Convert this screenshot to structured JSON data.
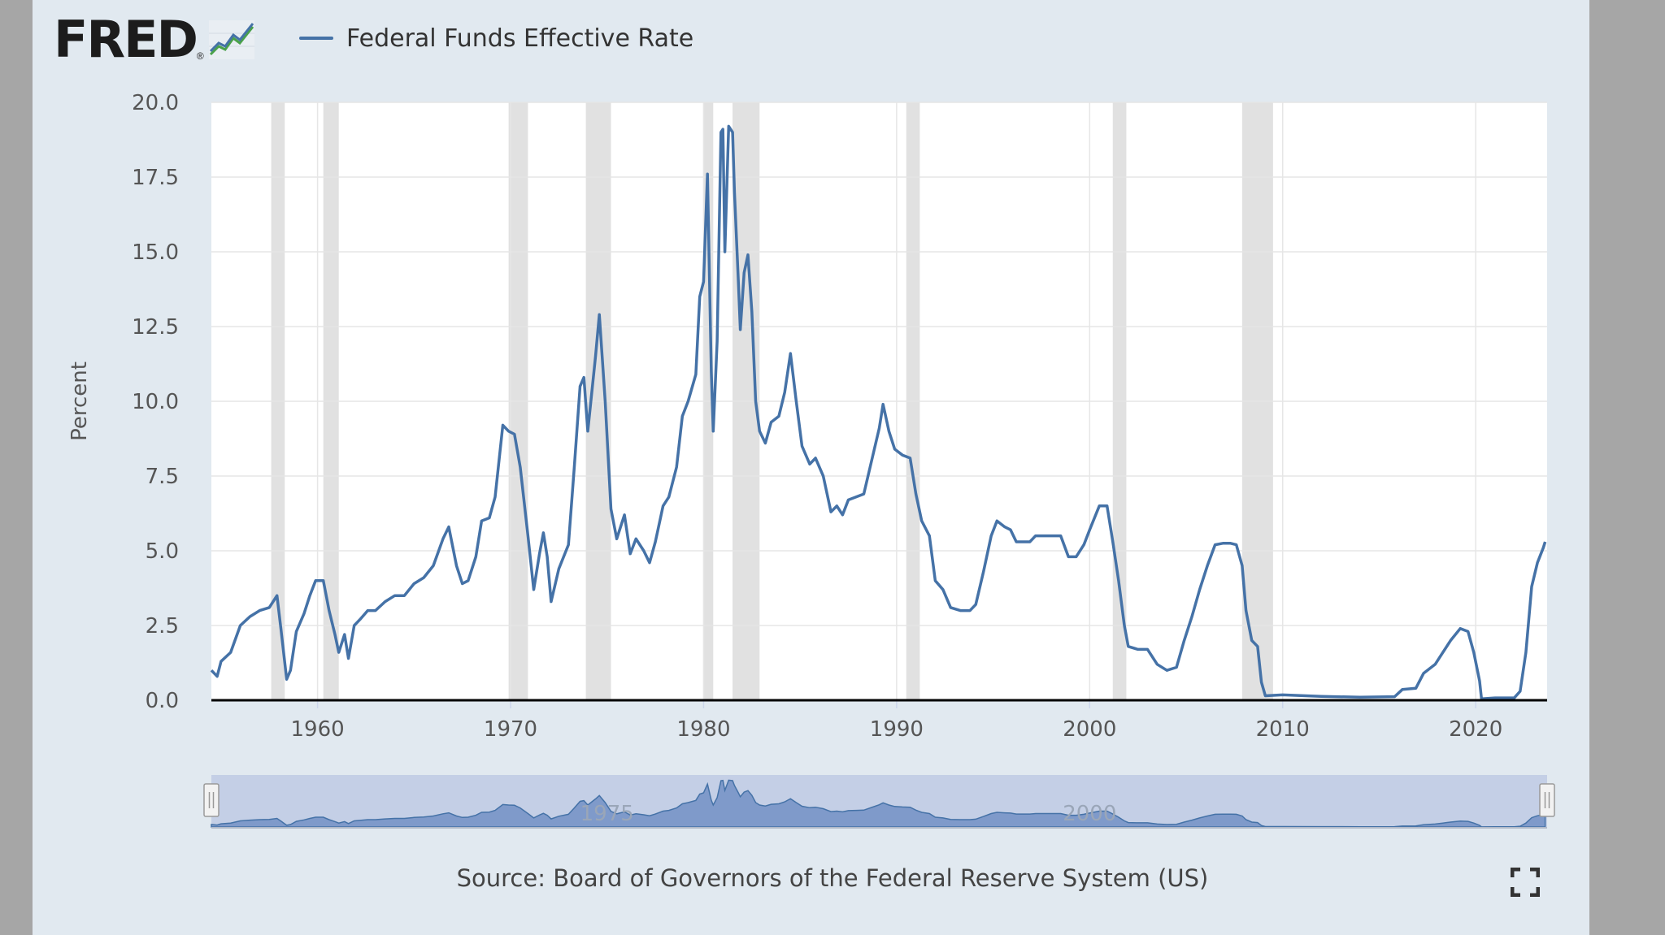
{
  "brand": {
    "logo_text": "FRED",
    "registered_mark": "®"
  },
  "chart_data": {
    "type": "line",
    "title": "",
    "series": [
      {
        "name": "Federal Funds Effective Rate",
        "color": "#4572a7",
        "points": [
          [
            1954.5,
            1.0
          ],
          [
            1954.8,
            0.8
          ],
          [
            1955.0,
            1.3
          ],
          [
            1955.5,
            1.6
          ],
          [
            1956.0,
            2.5
          ],
          [
            1956.5,
            2.8
          ],
          [
            1957.0,
            3.0
          ],
          [
            1957.5,
            3.1
          ],
          [
            1957.9,
            3.5
          ],
          [
            1958.1,
            2.4
          ],
          [
            1958.4,
            0.7
          ],
          [
            1958.6,
            1.0
          ],
          [
            1958.9,
            2.3
          ],
          [
            1959.3,
            2.9
          ],
          [
            1959.6,
            3.5
          ],
          [
            1959.9,
            4.0
          ],
          [
            1960.3,
            4.0
          ],
          [
            1960.6,
            3.0
          ],
          [
            1960.9,
            2.2
          ],
          [
            1961.1,
            1.6
          ],
          [
            1961.4,
            2.2
          ],
          [
            1961.6,
            1.4
          ],
          [
            1961.9,
            2.5
          ],
          [
            1962.2,
            2.7
          ],
          [
            1962.6,
            3.0
          ],
          [
            1963.0,
            3.0
          ],
          [
            1963.5,
            3.3
          ],
          [
            1964.0,
            3.5
          ],
          [
            1964.5,
            3.5
          ],
          [
            1965.0,
            3.9
          ],
          [
            1965.5,
            4.1
          ],
          [
            1966.0,
            4.5
          ],
          [
            1966.5,
            5.4
          ],
          [
            1966.8,
            5.8
          ],
          [
            1967.2,
            4.5
          ],
          [
            1967.5,
            3.9
          ],
          [
            1967.8,
            4.0
          ],
          [
            1968.2,
            4.8
          ],
          [
            1968.5,
            6.0
          ],
          [
            1968.9,
            6.1
          ],
          [
            1969.2,
            6.8
          ],
          [
            1969.6,
            9.2
          ],
          [
            1969.9,
            9.0
          ],
          [
            1970.2,
            8.9
          ],
          [
            1970.5,
            7.8
          ],
          [
            1970.9,
            5.5
          ],
          [
            1971.2,
            3.7
          ],
          [
            1971.5,
            4.9
          ],
          [
            1971.7,
            5.6
          ],
          [
            1971.9,
            4.8
          ],
          [
            1972.1,
            3.3
          ],
          [
            1972.5,
            4.4
          ],
          [
            1973.0,
            5.2
          ],
          [
            1973.3,
            7.8
          ],
          [
            1973.6,
            10.5
          ],
          [
            1973.8,
            10.8
          ],
          [
            1974.0,
            9.0
          ],
          [
            1974.4,
            11.5
          ],
          [
            1974.6,
            12.9
          ],
          [
            1974.9,
            10.0
          ],
          [
            1975.2,
            6.4
          ],
          [
            1975.5,
            5.4
          ],
          [
            1975.9,
            6.2
          ],
          [
            1976.2,
            4.9
          ],
          [
            1976.5,
            5.4
          ],
          [
            1976.9,
            5.0
          ],
          [
            1977.2,
            4.6
          ],
          [
            1977.5,
            5.3
          ],
          [
            1977.9,
            6.5
          ],
          [
            1978.2,
            6.8
          ],
          [
            1978.6,
            7.8
          ],
          [
            1978.9,
            9.5
          ],
          [
            1979.2,
            10.0
          ],
          [
            1979.6,
            10.9
          ],
          [
            1979.8,
            13.5
          ],
          [
            1980.0,
            14.0
          ],
          [
            1980.2,
            17.6
          ],
          [
            1980.4,
            11.0
          ],
          [
            1980.5,
            9.0
          ],
          [
            1980.7,
            12.0
          ],
          [
            1980.9,
            19.0
          ],
          [
            1981.0,
            19.1
          ],
          [
            1981.1,
            15.0
          ],
          [
            1981.3,
            19.2
          ],
          [
            1981.5,
            19.0
          ],
          [
            1981.6,
            17.0
          ],
          [
            1981.8,
            14.0
          ],
          [
            1981.9,
            12.4
          ],
          [
            1982.1,
            14.3
          ],
          [
            1982.3,
            14.9
          ],
          [
            1982.5,
            13.0
          ],
          [
            1982.7,
            10.0
          ],
          [
            1982.9,
            9.0
          ],
          [
            1983.2,
            8.6
          ],
          [
            1983.5,
            9.3
          ],
          [
            1983.9,
            9.5
          ],
          [
            1984.2,
            10.3
          ],
          [
            1984.5,
            11.6
          ],
          [
            1984.8,
            10.0
          ],
          [
            1985.1,
            8.5
          ],
          [
            1985.5,
            7.9
          ],
          [
            1985.8,
            8.1
          ],
          [
            1986.2,
            7.5
          ],
          [
            1986.6,
            6.3
          ],
          [
            1986.9,
            6.5
          ],
          [
            1987.2,
            6.2
          ],
          [
            1987.5,
            6.7
          ],
          [
            1987.9,
            6.8
          ],
          [
            1988.3,
            6.9
          ],
          [
            1988.7,
            8.0
          ],
          [
            1989.1,
            9.1
          ],
          [
            1989.3,
            9.9
          ],
          [
            1989.6,
            9.0
          ],
          [
            1989.9,
            8.4
          ],
          [
            1990.3,
            8.2
          ],
          [
            1990.7,
            8.1
          ],
          [
            1991.0,
            6.9
          ],
          [
            1991.3,
            6.0
          ],
          [
            1991.7,
            5.5
          ],
          [
            1992.0,
            4.0
          ],
          [
            1992.4,
            3.7
          ],
          [
            1992.8,
            3.1
          ],
          [
            1993.3,
            3.0
          ],
          [
            1993.8,
            3.0
          ],
          [
            1994.1,
            3.2
          ],
          [
            1994.5,
            4.3
          ],
          [
            1994.9,
            5.5
          ],
          [
            1995.2,
            6.0
          ],
          [
            1995.6,
            5.8
          ],
          [
            1995.9,
            5.7
          ],
          [
            1996.2,
            5.3
          ],
          [
            1996.6,
            5.3
          ],
          [
            1996.9,
            5.3
          ],
          [
            1997.2,
            5.5
          ],
          [
            1997.6,
            5.5
          ],
          [
            1998.0,
            5.5
          ],
          [
            1998.5,
            5.5
          ],
          [
            1998.9,
            4.8
          ],
          [
            1999.3,
            4.8
          ],
          [
            1999.7,
            5.2
          ],
          [
            2000.0,
            5.7
          ],
          [
            2000.5,
            6.5
          ],
          [
            2000.9,
            6.5
          ],
          [
            2001.2,
            5.3
          ],
          [
            2001.5,
            4.0
          ],
          [
            2001.8,
            2.5
          ],
          [
            2002.0,
            1.8
          ],
          [
            2002.5,
            1.7
          ],
          [
            2003.0,
            1.7
          ],
          [
            2003.5,
            1.2
          ],
          [
            2004.0,
            1.0
          ],
          [
            2004.5,
            1.1
          ],
          [
            2004.9,
            2.0
          ],
          [
            2005.3,
            2.8
          ],
          [
            2005.7,
            3.7
          ],
          [
            2006.1,
            4.5
          ],
          [
            2006.5,
            5.2
          ],
          [
            2006.9,
            5.25
          ],
          [
            2007.3,
            5.25
          ],
          [
            2007.6,
            5.2
          ],
          [
            2007.9,
            4.5
          ],
          [
            2008.1,
            3.0
          ],
          [
            2008.4,
            2.0
          ],
          [
            2008.7,
            1.8
          ],
          [
            2008.9,
            0.6
          ],
          [
            2009.1,
            0.15
          ],
          [
            2010.0,
            0.18
          ],
          [
            2012.0,
            0.13
          ],
          [
            2014.0,
            0.1
          ],
          [
            2015.8,
            0.12
          ],
          [
            2016.2,
            0.36
          ],
          [
            2016.9,
            0.4
          ],
          [
            2017.3,
            0.9
          ],
          [
            2017.9,
            1.2
          ],
          [
            2018.3,
            1.6
          ],
          [
            2018.7,
            2.0
          ],
          [
            2019.2,
            2.4
          ],
          [
            2019.6,
            2.3
          ],
          [
            2019.9,
            1.6
          ],
          [
            2020.2,
            0.65
          ],
          [
            2020.3,
            0.05
          ],
          [
            2021.0,
            0.08
          ],
          [
            2022.0,
            0.08
          ],
          [
            2022.3,
            0.3
          ],
          [
            2022.6,
            1.6
          ],
          [
            2022.9,
            3.8
          ],
          [
            2023.2,
            4.6
          ],
          [
            2023.5,
            5.1
          ],
          [
            2023.6,
            5.3
          ]
        ]
      }
    ],
    "xlabel": "",
    "ylabel": "Percent",
    "xlim": [
      1954.5,
      2023.7
    ],
    "ylim": [
      0,
      20
    ],
    "y_ticks": [
      "0.0",
      "2.5",
      "5.0",
      "7.5",
      "10.0",
      "12.5",
      "15.0",
      "17.5",
      "20.0"
    ],
    "x_ticks": [
      "1960",
      "1970",
      "1980",
      "1990",
      "2000",
      "2010",
      "2020"
    ],
    "recessions": [
      [
        1957.6,
        1958.3
      ],
      [
        1960.3,
        1961.1
      ],
      [
        1969.9,
        1970.9
      ],
      [
        1973.9,
        1975.2
      ],
      [
        1980.0,
        1980.5
      ],
      [
        1981.5,
        1982.9
      ],
      [
        1990.5,
        1991.2
      ],
      [
        2001.2,
        2001.9
      ],
      [
        2007.9,
        2009.5
      ]
    ],
    "grid": true,
    "legend": "top-left",
    "navigator_labels": [
      "1975",
      "2000"
    ],
    "source": "Source: Board of Governors of the Federal Reserve System (US)"
  },
  "colors": {
    "panel": "#e1e9f0",
    "plot": "#ffffff",
    "recession": "#e1e1e1",
    "line": "#4572a7",
    "navigator_bg": "#c4cfe6",
    "navigator_fill": "#7391c4"
  }
}
